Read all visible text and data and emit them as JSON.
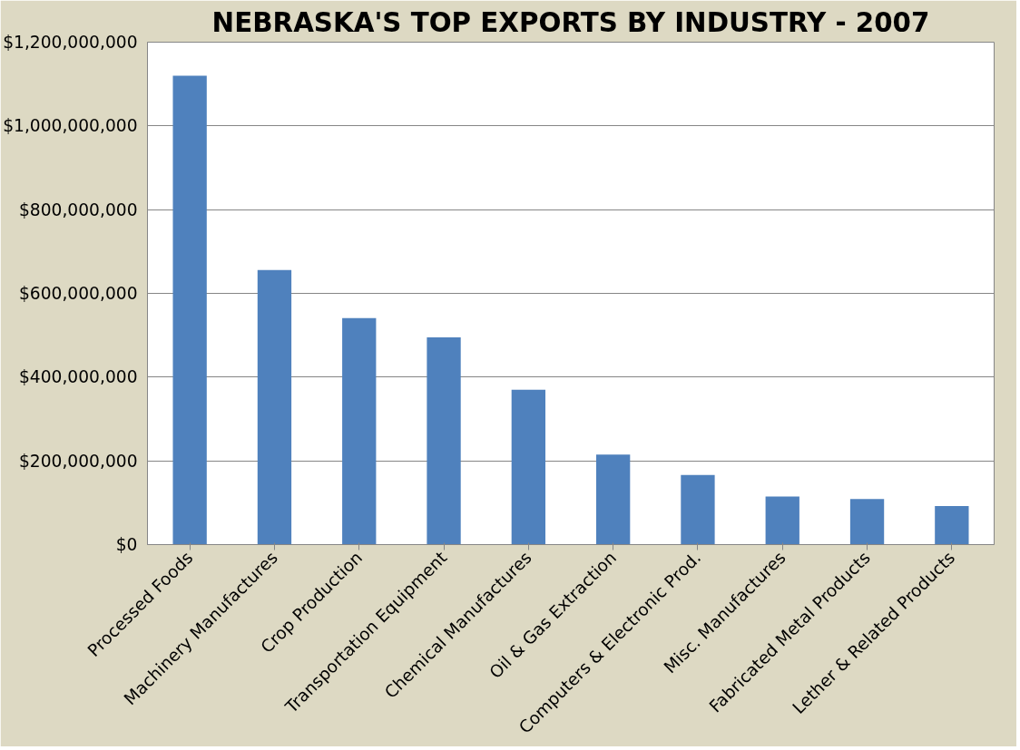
{
  "chart_data": {
    "type": "bar",
    "title": "NEBRASKA'S TOP EXPORTS BY INDUSTRY - 2007",
    "categories": [
      "Processed Foods",
      "Machinery Manufactures",
      "Crop Production",
      "Transportation Equipment",
      "Chemical Manufactures",
      "Oil & Gas Extraction",
      "Computers & Electronic Prod.",
      "Misc. Manufactures",
      "Fabricated Metal Products",
      "Lether & Related Products"
    ],
    "values": [
      1120000000,
      656000000,
      541000000,
      495000000,
      370000000,
      215000000,
      166000000,
      115000000,
      109000000,
      92000000
    ],
    "color": "#4f81bd",
    "ylim": [
      0,
      1200000000
    ],
    "yticks": [
      {
        "value": 0,
        "label": "$0"
      },
      {
        "value": 200000000,
        "label": "$200,000,000"
      },
      {
        "value": 400000000,
        "label": "$400,000,000"
      },
      {
        "value": 600000000,
        "label": "$600,000,000"
      },
      {
        "value": 800000000,
        "label": "$800,000,000"
      },
      {
        "value": 1000000000,
        "label": "$1,000,000,000"
      },
      {
        "value": 1200000000,
        "label": "$1,200,000,000"
      }
    ],
    "grid": "y"
  }
}
